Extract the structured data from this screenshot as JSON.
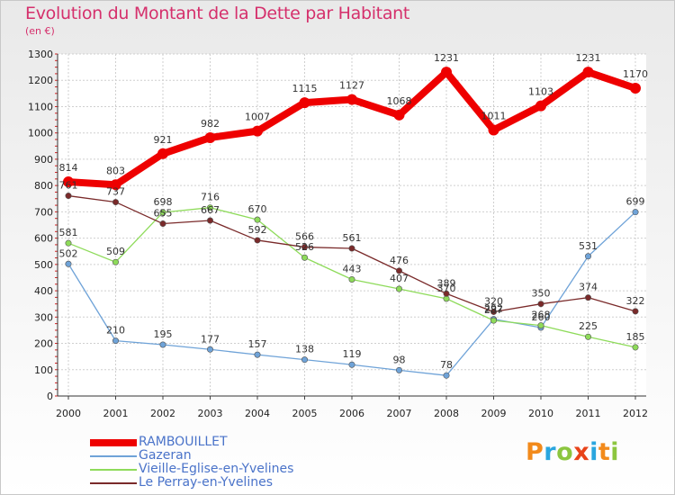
{
  "title": "Evolution du Montant de la Dette par Habitant",
  "subtitle": "(en €)",
  "logo_text": "Proxiti",
  "logo_colors": [
    "#f28a1b",
    "#2aa6df",
    "#8cc63f",
    "#e8431a",
    "#2aa6df",
    "#f28a1b",
    "#8cc63f"
  ],
  "chart_data": {
    "type": "line",
    "x": [
      2000,
      2001,
      2002,
      2003,
      2004,
      2005,
      2006,
      2007,
      2008,
      2009,
      2010,
      2011,
      2012
    ],
    "ylim": [
      0,
      1300
    ],
    "yticks": [
      0,
      100,
      200,
      300,
      400,
      500,
      600,
      700,
      800,
      900,
      1000,
      1100,
      1200,
      1300
    ],
    "legend_position": "bottom-left",
    "series": [
      {
        "name": "RAMBOUILLET",
        "color": "#ee0000",
        "values": [
          814,
          803,
          921,
          982,
          1007,
          1115,
          1127,
          1068,
          1231,
          1011,
          1103,
          1231,
          1170
        ],
        "labels": [
          "814",
          "803",
          "921",
          "982",
          "1007",
          "1115",
          "1127",
          "1068",
          "1231",
          "1011",
          "1103",
          "1231",
          "1170"
        ]
      },
      {
        "name": "Gazeran",
        "color": "#6fa3d8",
        "values": [
          502,
          210,
          195,
          177,
          157,
          138,
          119,
          98,
          78,
          292,
          260,
          531,
          699
        ],
        "labels": [
          "502",
          "210",
          "195",
          "177",
          "157",
          "138",
          "119",
          "98",
          "78",
          "292",
          "260",
          "531",
          "699"
        ]
      },
      {
        "name": "Vieille-Eglise-en-Yvelines",
        "color": "#8edb5a",
        "values": [
          581,
          509,
          698,
          716,
          670,
          526,
          443,
          407,
          370,
          287,
          268,
          225,
          185
        ],
        "labels": [
          "581",
          "509",
          "698",
          "716",
          "670",
          "526",
          "443",
          "407",
          "370",
          "287",
          "268",
          "225",
          "185"
        ]
      },
      {
        "name": "Le Perray-en-Yvelines",
        "color": "#7a2a2a",
        "values": [
          761,
          737,
          655,
          667,
          592,
          566,
          561,
          476,
          389,
          320,
          350,
          374,
          322
        ],
        "labels": [
          "761",
          "737",
          "655",
          "667",
          "592",
          "566",
          "561",
          "476",
          "389",
          "320",
          "350",
          "374",
          "322"
        ]
      }
    ]
  }
}
